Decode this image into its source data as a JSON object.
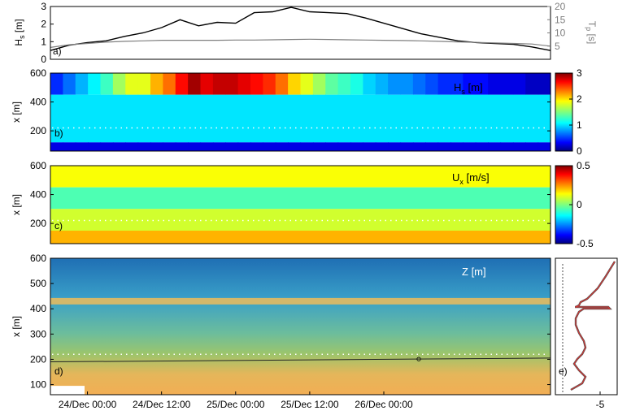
{
  "chart_data": [
    {
      "panel": "a",
      "type": "line",
      "panel_label": "a)",
      "ylabel_left": "H",
      "ylabel_left_sub": "s",
      "ylabel_left_unit": " [m]",
      "ylabel_right": "T",
      "ylabel_right_sub": "p",
      "ylabel_right_unit": " [s]",
      "ylim_left": [
        0,
        3
      ],
      "yticks_left": [
        "0",
        "1",
        "2",
        "3"
      ],
      "ylim_right": [
        0,
        20
      ],
      "yticks_right": [
        "5",
        "10",
        "15",
        "20"
      ],
      "colors": {
        "hs": "#000000",
        "tp": "#7f7f7f"
      },
      "x": [
        0,
        3,
        6,
        9,
        12,
        15,
        18,
        21,
        24,
        27,
        30,
        33,
        36,
        39,
        42,
        45,
        48,
        51,
        54,
        57,
        60,
        63,
        66,
        69,
        72,
        75,
        78,
        81
      ],
      "series": [
        {
          "key": "hs",
          "values": [
            0.5,
            0.8,
            0.95,
            1.05,
            1.3,
            1.5,
            1.8,
            2.25,
            1.9,
            2.1,
            2.05,
            2.65,
            2.7,
            2.95,
            2.7,
            2.65,
            2.6,
            2.35,
            2.05,
            1.75,
            1.45,
            1.25,
            1.05,
            0.95,
            0.9,
            0.85,
            0.7,
            0.5
          ]
        },
        {
          "key": "tp",
          "values": [
            4.5,
            5.5,
            6.0,
            6.5,
            6.8,
            7.0,
            7.2,
            7.2,
            7.2,
            7.2,
            7.3,
            7.3,
            7.4,
            7.5,
            7.6,
            7.5,
            7.4,
            7.3,
            7.2,
            7.1,
            7.0,
            6.8,
            6.6,
            6.4,
            6.2,
            6.0,
            5.8,
            5.0
          ]
        }
      ]
    },
    {
      "panel": "b",
      "type": "heatmap",
      "panel_label": "b)",
      "ylabel": "x [m]",
      "ylim": [
        60,
        600
      ],
      "yticks": [
        "200",
        "400",
        "600"
      ],
      "title_main": "H",
      "title_sub": "s",
      "title_unit": " [m]",
      "colorbar_ticks": [
        "0",
        "1",
        "2",
        "3"
      ],
      "clim": [
        0,
        3
      ],
      "dotted_line_y": 220,
      "cols": 40,
      "zones": [
        {
          "x_min": 450,
          "x_max": 600,
          "profile": [
            0.5,
            0.7,
            0.9,
            1.1,
            1.3,
            1.6,
            1.8,
            1.8,
            2.1,
            2.3,
            2.6,
            2.9,
            2.7,
            2.8,
            2.8,
            2.7,
            2.6,
            2.5,
            2.3,
            2.0,
            1.8,
            1.6,
            1.4,
            1.3,
            1.2,
            1.0,
            0.9,
            0.8,
            0.8,
            0.7,
            0.6,
            0.5,
            0.5,
            0.4,
            0.4,
            0.3,
            0.3,
            0.3,
            0.2,
            0.2
          ]
        },
        {
          "x_min": 120,
          "x_max": 450,
          "value": 1.05
        },
        {
          "x_min": 60,
          "x_max": 120,
          "value": 0.3
        }
      ]
    },
    {
      "panel": "c",
      "type": "heatmap",
      "panel_label": "c)",
      "ylabel": "x [m]",
      "ylim": [
        60,
        600
      ],
      "yticks": [
        "200",
        "400",
        "600"
      ],
      "title_main": "U",
      "title_sub": "x",
      "title_unit": " [m/s]",
      "colorbar_ticks": [
        "0.5",
        "0",
        "-0.5"
      ],
      "clim": [
        -0.5,
        0.5
      ],
      "dotted_line_y": 220,
      "zones": [
        {
          "x_min": 450,
          "x_max": 600,
          "value": 0.12
        },
        {
          "x_min": 300,
          "x_max": 450,
          "value": -0.05
        },
        {
          "x_min": 150,
          "x_max": 300,
          "value": 0.08
        },
        {
          "x_min": 60,
          "x_max": 150,
          "value": 0.2
        }
      ]
    },
    {
      "panel": "d",
      "type": "heatmap",
      "panel_label": "d)",
      "ylabel": "x [m]",
      "ylim": [
        60,
        600
      ],
      "yticks": [
        "100",
        "200",
        "300",
        "400",
        "500",
        "600"
      ],
      "title_main": "Z",
      "title_sub": "",
      "title_unit": " [m]",
      "dotted_line_y": 220,
      "bar_y": 430,
      "xticks": [
        "24/Dec 00:00",
        "24/Dec 12:00",
        "25/Dec 00:00",
        "25/Dec 12:00",
        "26/Dec 00:00"
      ],
      "xtick_hours": [
        6,
        18,
        30,
        42,
        54
      ]
    },
    {
      "panel": "e",
      "type": "line",
      "panel_label": "e)",
      "xticks": [
        "-5"
      ]
    }
  ]
}
